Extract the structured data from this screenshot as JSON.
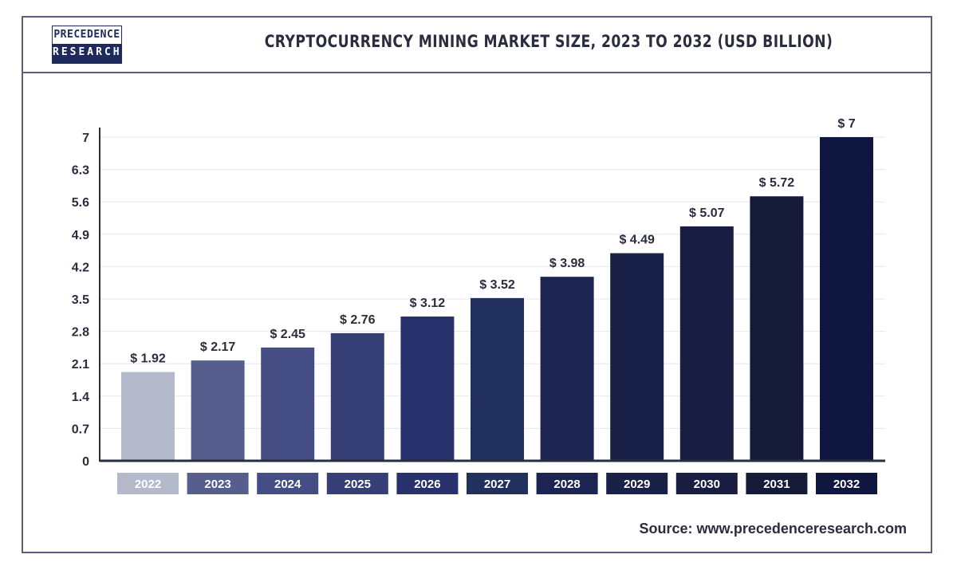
{
  "brand": {
    "line1": "PRECEDENCE",
    "line2": "RESEARCH"
  },
  "source": "Source: www.precedenceresearch.com",
  "chart_data": {
    "type": "bar",
    "title": "CRYPTOCURRENCY MINING MARKET SIZE, 2023 TO 2032 (USD BILLION)",
    "xlabel": "",
    "ylabel": "",
    "categories": [
      "2022",
      "2023",
      "2024",
      "2025",
      "2026",
      "2027",
      "2028",
      "2029",
      "2030",
      "2031",
      "2032"
    ],
    "values": [
      1.92,
      2.17,
      2.45,
      2.76,
      3.12,
      3.52,
      3.98,
      4.49,
      5.07,
      5.72,
      7
    ],
    "data_labels": [
      "$ 1.92",
      "$ 2.17",
      "$ 2.45",
      "$ 2.76",
      "$ 3.12",
      "$ 3.52",
      "$ 3.98",
      "$ 4.49",
      "$ 5.07",
      "$ 5.72",
      "$ 7"
    ],
    "yticks": [
      "0",
      "0.7",
      "1.4",
      "2.1",
      "2.8",
      "3.5",
      "4.2",
      "4.9",
      "5.6",
      "6.3",
      "7"
    ],
    "ylim": [
      0,
      7
    ],
    "grid": true,
    "colors": [
      "#b4b9cc",
      "#565e8e",
      "#454e84",
      "#363f76",
      "#28316b",
      "#223060",
      "#1c2551",
      "#1a2149",
      "#181d41",
      "#151a39",
      "#0f1640"
    ]
  }
}
